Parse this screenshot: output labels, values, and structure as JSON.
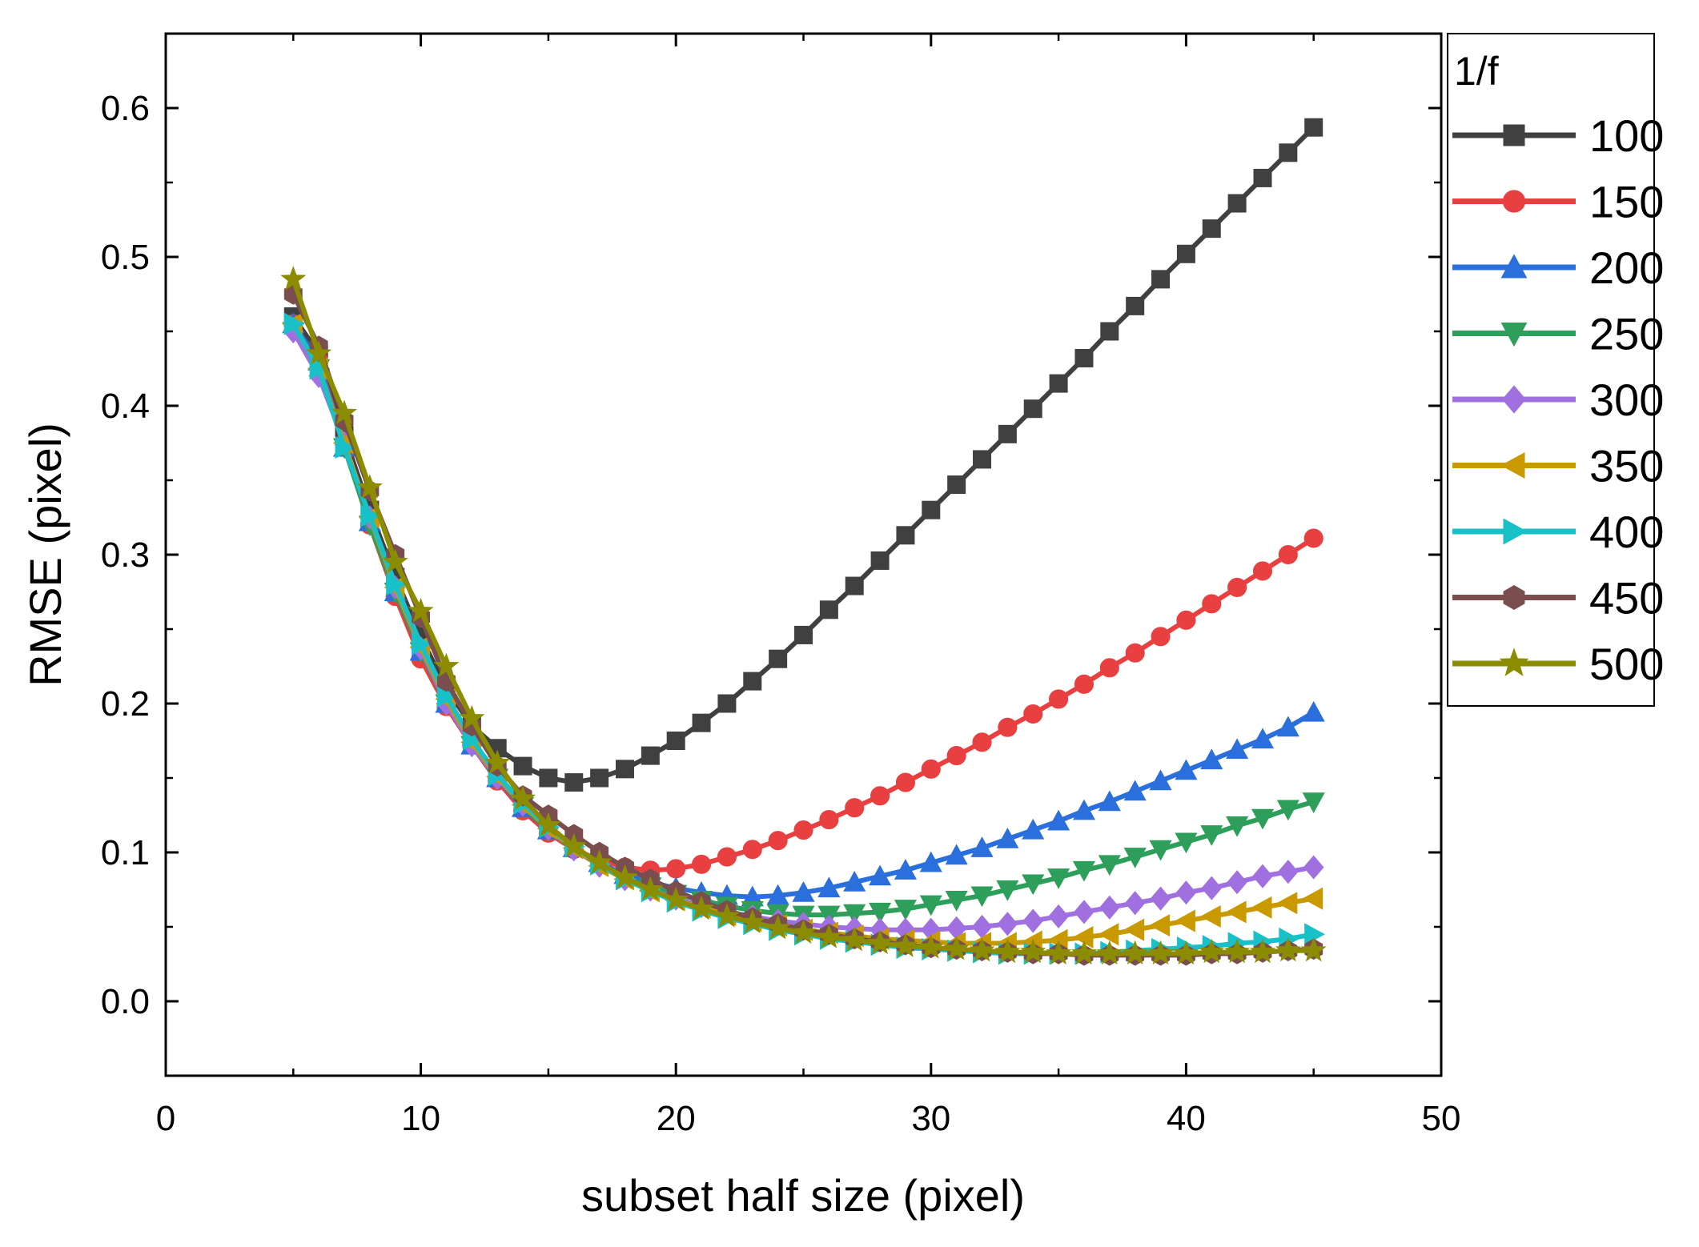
{
  "chart_data": {
    "type": "line",
    "title": "",
    "xlabel": "subset half size (pixel)",
    "ylabel": "RMSE (pixel)",
    "xlim": [
      0,
      50
    ],
    "ylim": [
      -0.05,
      0.65
    ],
    "xticks": [
      0,
      10,
      20,
      30,
      40,
      50
    ],
    "xtick_labels": [
      "0",
      "10",
      "20",
      "30",
      "40",
      "50"
    ],
    "yticks": [
      0.0,
      0.1,
      0.2,
      0.3,
      0.4,
      0.5,
      0.6
    ],
    "ytick_labels": [
      "0.0",
      "0.1",
      "0.2",
      "0.3",
      "0.4",
      "0.5",
      "0.6"
    ],
    "grid": false,
    "legend_title": "1/f",
    "legend_position": "right",
    "x": [
      5,
      6,
      7,
      8,
      9,
      10,
      11,
      12,
      13,
      14,
      15,
      16,
      17,
      18,
      19,
      20,
      21,
      22,
      23,
      24,
      25,
      26,
      27,
      28,
      29,
      30,
      31,
      32,
      33,
      34,
      35,
      36,
      37,
      38,
      39,
      40,
      41,
      42,
      43,
      44,
      45
    ],
    "series": [
      {
        "name": "100",
        "color": "#404040",
        "marker": "square",
        "values": [
          0.46,
          0.435,
          0.38,
          0.33,
          0.285,
          0.245,
          0.21,
          0.185,
          0.17,
          0.158,
          0.15,
          0.147,
          0.15,
          0.156,
          0.165,
          0.175,
          0.187,
          0.2,
          0.215,
          0.23,
          0.246,
          0.263,
          0.279,
          0.296,
          0.313,
          0.33,
          0.347,
          0.364,
          0.381,
          0.398,
          0.415,
          0.432,
          0.45,
          0.467,
          0.485,
          0.502,
          0.519,
          0.536,
          0.553,
          0.57,
          0.587
        ]
      },
      {
        "name": "150",
        "color": "#e84040",
        "marker": "circle",
        "values": [
          0.455,
          0.43,
          0.375,
          0.32,
          0.272,
          0.23,
          0.198,
          0.172,
          0.148,
          0.128,
          0.113,
          0.102,
          0.095,
          0.09,
          0.088,
          0.089,
          0.092,
          0.097,
          0.102,
          0.108,
          0.115,
          0.122,
          0.13,
          0.138,
          0.147,
          0.156,
          0.165,
          0.174,
          0.184,
          0.193,
          0.203,
          0.213,
          0.224,
          0.234,
          0.245,
          0.256,
          0.267,
          0.278,
          0.289,
          0.3,
          0.311
        ]
      },
      {
        "name": "200",
        "color": "#2a6fdb",
        "marker": "triangle-up",
        "values": [
          0.455,
          0.43,
          0.372,
          0.322,
          0.275,
          0.235,
          0.2,
          0.172,
          0.15,
          0.13,
          0.115,
          0.103,
          0.093,
          0.085,
          0.08,
          0.076,
          0.073,
          0.071,
          0.07,
          0.071,
          0.073,
          0.076,
          0.08,
          0.084,
          0.088,
          0.093,
          0.098,
          0.103,
          0.109,
          0.115,
          0.121,
          0.128,
          0.134,
          0.141,
          0.148,
          0.155,
          0.162,
          0.169,
          0.176,
          0.184,
          0.194
        ]
      },
      {
        "name": "250",
        "color": "#2e9e5b",
        "marker": "triangle-down",
        "values": [
          0.45,
          0.425,
          0.372,
          0.32,
          0.275,
          0.235,
          0.2,
          0.172,
          0.15,
          0.131,
          0.115,
          0.102,
          0.092,
          0.083,
          0.077,
          0.072,
          0.068,
          0.064,
          0.061,
          0.059,
          0.058,
          0.058,
          0.059,
          0.06,
          0.062,
          0.065,
          0.068,
          0.071,
          0.075,
          0.079,
          0.083,
          0.088,
          0.092,
          0.097,
          0.102,
          0.107,
          0.112,
          0.118,
          0.123,
          0.129,
          0.134
        ]
      },
      {
        "name": "300",
        "color": "#a070e0",
        "marker": "diamond",
        "values": [
          0.45,
          0.42,
          0.375,
          0.325,
          0.278,
          0.237,
          0.2,
          0.172,
          0.15,
          0.132,
          0.116,
          0.102,
          0.091,
          0.082,
          0.075,
          0.069,
          0.064,
          0.06,
          0.057,
          0.054,
          0.052,
          0.05,
          0.049,
          0.048,
          0.048,
          0.048,
          0.049,
          0.05,
          0.052,
          0.054,
          0.057,
          0.06,
          0.063,
          0.066,
          0.069,
          0.073,
          0.076,
          0.08,
          0.084,
          0.087,
          0.09
        ]
      },
      {
        "name": "350",
        "color": "#c89a00",
        "marker": "triangle-left",
        "values": [
          0.455,
          0.425,
          0.375,
          0.325,
          0.278,
          0.238,
          0.203,
          0.174,
          0.151,
          0.132,
          0.116,
          0.103,
          0.091,
          0.082,
          0.074,
          0.068,
          0.063,
          0.058,
          0.054,
          0.051,
          0.048,
          0.046,
          0.044,
          0.042,
          0.041,
          0.04,
          0.039,
          0.039,
          0.039,
          0.04,
          0.041,
          0.043,
          0.045,
          0.048,
          0.051,
          0.054,
          0.057,
          0.06,
          0.063,
          0.066,
          0.069
        ]
      },
      {
        "name": "400",
        "color": "#18c0c8",
        "marker": "triangle-right",
        "values": [
          0.455,
          0.425,
          0.372,
          0.326,
          0.28,
          0.24,
          0.205,
          0.176,
          0.152,
          0.133,
          0.117,
          0.104,
          0.092,
          0.082,
          0.074,
          0.067,
          0.061,
          0.056,
          0.052,
          0.048,
          0.045,
          0.042,
          0.04,
          0.038,
          0.036,
          0.035,
          0.034,
          0.033,
          0.032,
          0.032,
          0.032,
          0.032,
          0.033,
          0.034,
          0.035,
          0.036,
          0.037,
          0.039,
          0.04,
          0.042,
          0.045
        ]
      },
      {
        "name": "450",
        "color": "#7a4e4e",
        "marker": "hexagon",
        "values": [
          0.475,
          0.44,
          0.39,
          0.343,
          0.3,
          0.258,
          0.215,
          0.185,
          0.158,
          0.138,
          0.125,
          0.112,
          0.1,
          0.09,
          0.082,
          0.074,
          0.067,
          0.061,
          0.056,
          0.052,
          0.048,
          0.045,
          0.042,
          0.04,
          0.038,
          0.036,
          0.035,
          0.034,
          0.033,
          0.032,
          0.032,
          0.031,
          0.031,
          0.031,
          0.031,
          0.031,
          0.032,
          0.032,
          0.033,
          0.034,
          0.035
        ]
      },
      {
        "name": "500",
        "color": "#8c8c00",
        "marker": "star",
        "values": [
          0.485,
          0.435,
          0.395,
          0.345,
          0.295,
          0.262,
          0.225,
          0.19,
          0.16,
          0.136,
          0.118,
          0.104,
          0.093,
          0.083,
          0.075,
          0.068,
          0.062,
          0.057,
          0.053,
          0.049,
          0.046,
          0.043,
          0.041,
          0.039,
          0.037,
          0.036,
          0.035,
          0.034,
          0.033,
          0.033,
          0.032,
          0.032,
          0.032,
          0.032,
          0.032,
          0.032,
          0.033,
          0.033,
          0.033,
          0.034,
          0.034
        ]
      }
    ]
  }
}
